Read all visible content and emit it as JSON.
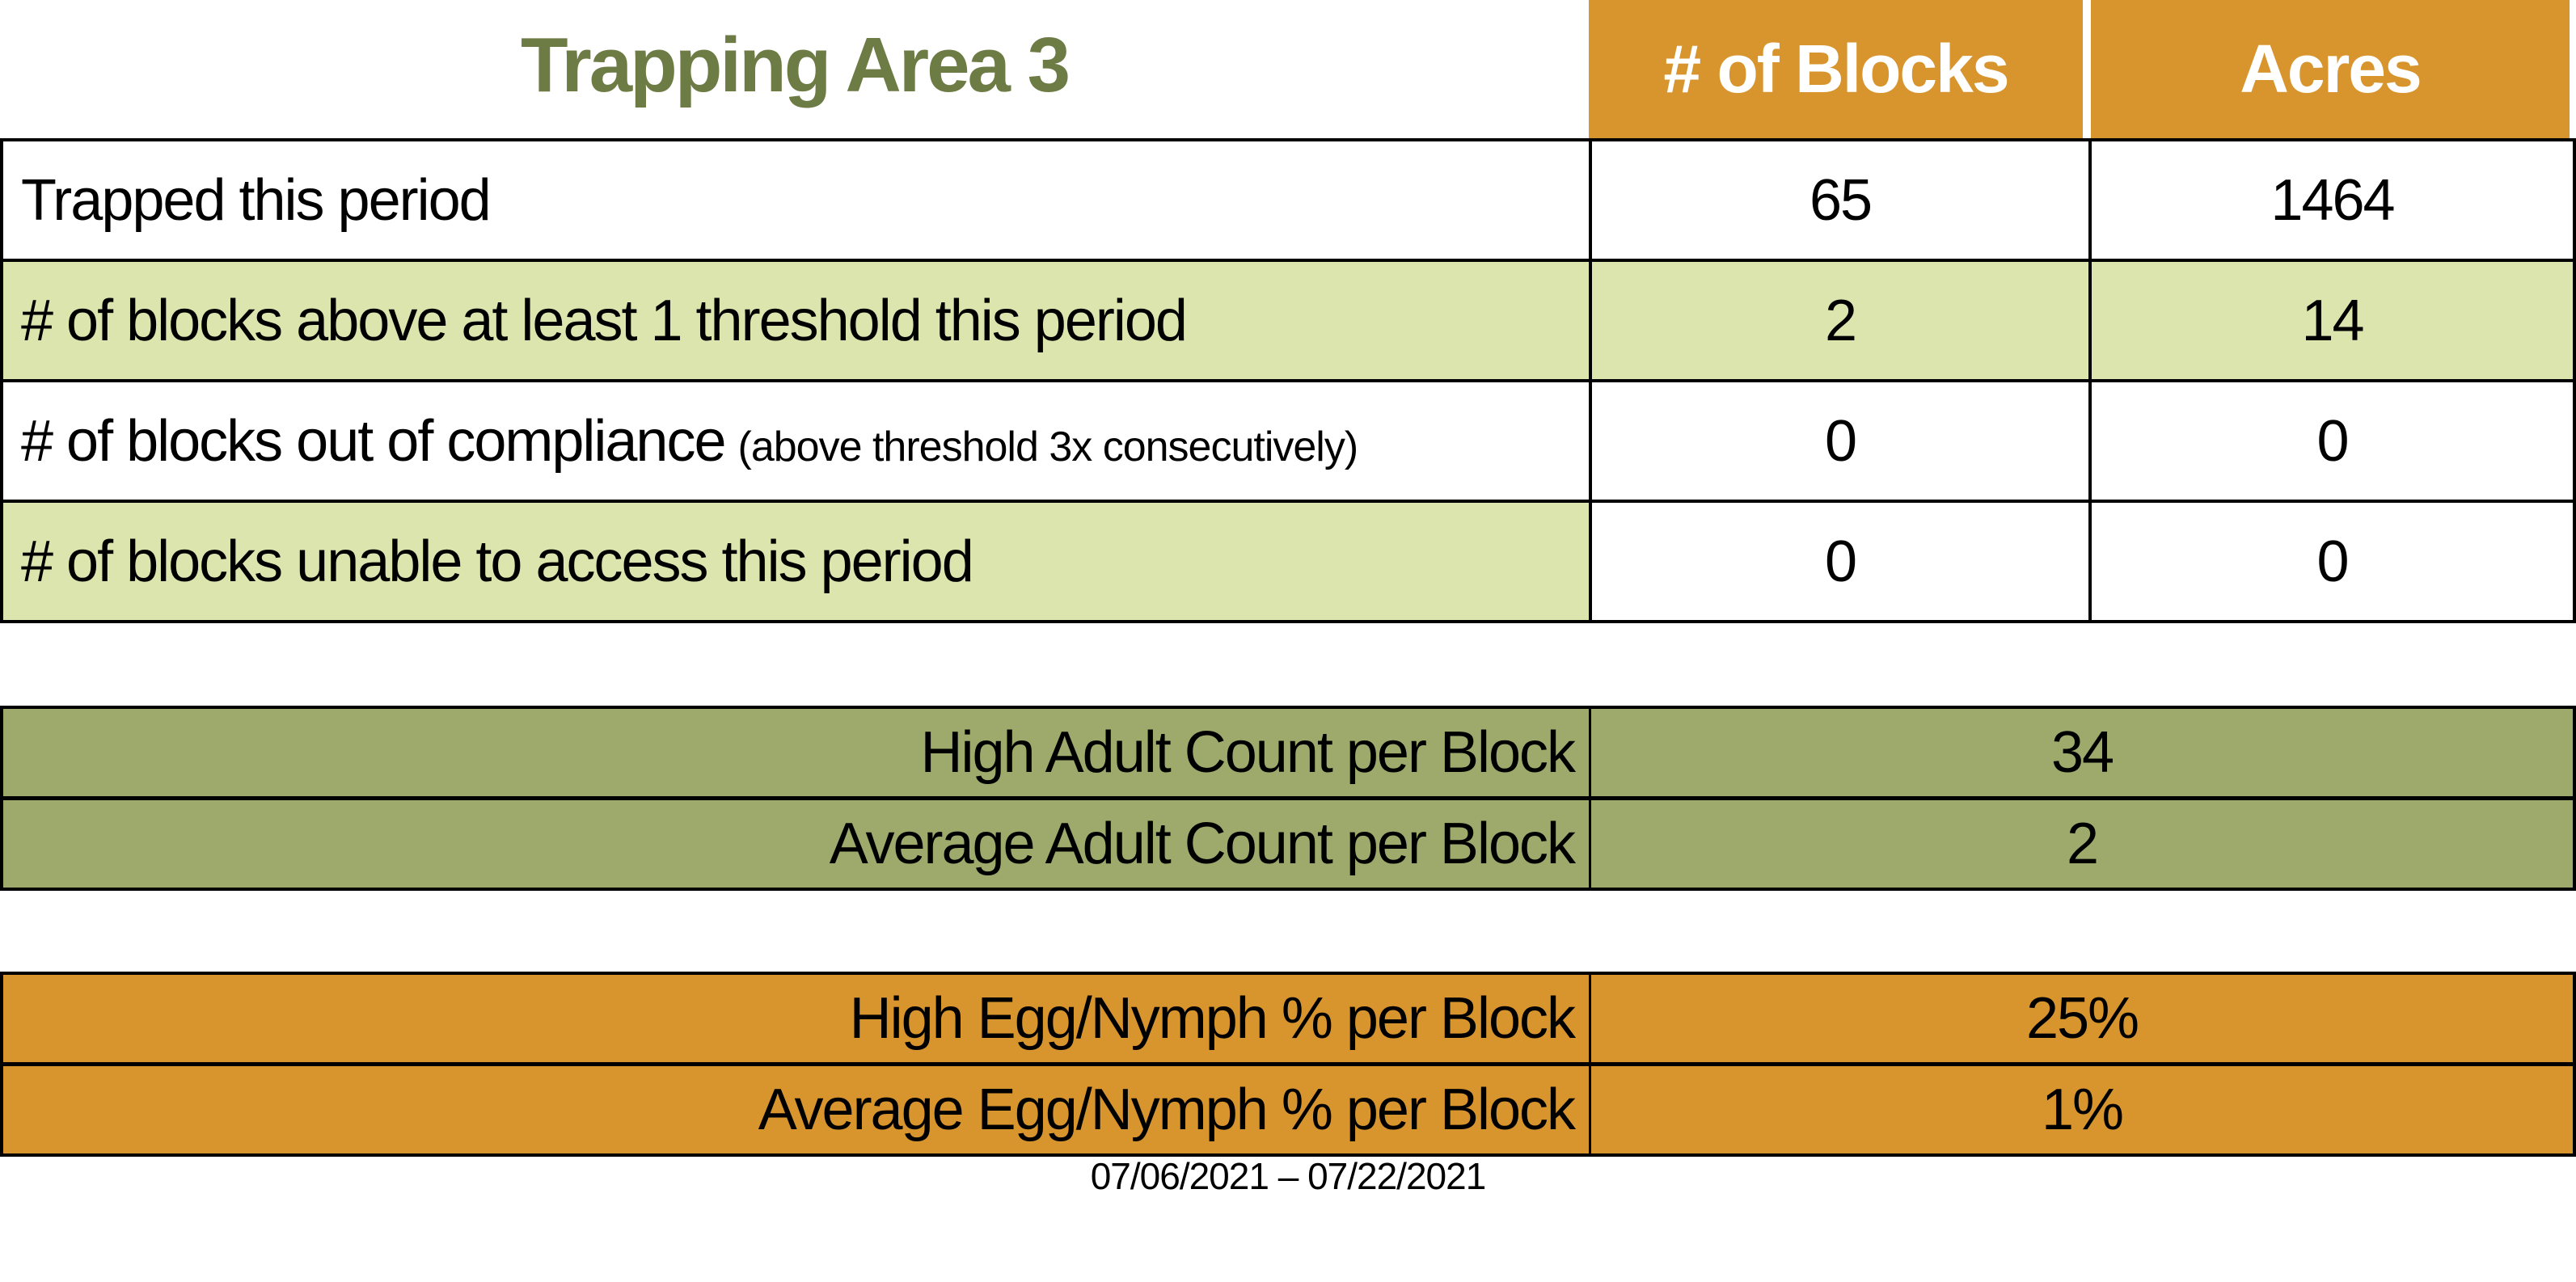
{
  "title": "Trapping Area 3",
  "colors": {
    "orange": "#D8942D",
    "light_green": "#DBE5AD",
    "olive": "#9DAA6B",
    "title_green": "#6D7B45"
  },
  "main_table": {
    "columns": [
      "# of Blocks",
      "Acres"
    ],
    "rows": [
      {
        "label": "Trapped this period",
        "sublabel": "",
        "blocks": "65",
        "acres": "1464"
      },
      {
        "label": "# of blocks above at least 1 threshold this period",
        "sublabel": "",
        "blocks": "2",
        "acres": "14"
      },
      {
        "label": "# of blocks out of compliance",
        "sublabel": "(above threshold 3x consecutively)",
        "blocks": "0",
        "acres": "0"
      },
      {
        "label": "# of blocks unable to access this period",
        "sublabel": "",
        "blocks": "0",
        "acres": "0"
      }
    ]
  },
  "adult_table": {
    "rows": [
      {
        "label": "High Adult Count per Block",
        "value": "34"
      },
      {
        "label": "Average Adult Count per Block",
        "value": "2"
      }
    ]
  },
  "egg_table": {
    "rows": [
      {
        "label": "High Egg/Nymph % per Block",
        "value": "25%"
      },
      {
        "label": "Average Egg/Nymph % per Block",
        "value": "1%"
      }
    ]
  },
  "footer": {
    "date_range": "07/06/2021 – 07/22/2021"
  }
}
